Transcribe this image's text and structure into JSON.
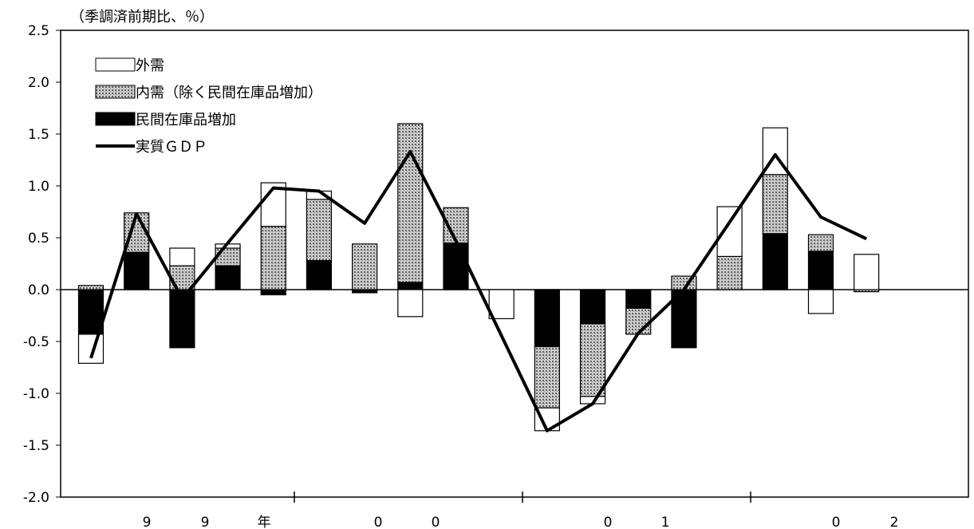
{
  "chart_data": {
    "type": "bar",
    "stacked": true,
    "unit_label": "（季調済前期比、％）",
    "title": "",
    "xlabel": "",
    "ylabel": "",
    "ylim": [
      -2.0,
      2.5
    ],
    "y_ticks": [
      "2.5",
      "2.0",
      "1.5",
      "1.0",
      "0.5",
      "0.0",
      "-0.5",
      "-1.0",
      "-1.5",
      "-2.0"
    ],
    "x_tick_labels": [
      "9",
      "9",
      "年",
      "0",
      "0",
      "0",
      "1",
      "0",
      "2"
    ],
    "grid": false,
    "legend_position": "top-left",
    "series": [
      {
        "name": "外需",
        "pattern": "white",
        "values": [
          -0.28,
          0.0,
          0.17,
          0.04,
          0.42,
          0.08,
          0.0,
          -0.26,
          0.0,
          -0.28,
          -0.22,
          -0.07,
          0.0,
          0.0,
          0.48,
          0.45,
          -0.23,
          0.34
        ]
      },
      {
        "name": "内需（除く民間在庫品増加）",
        "pattern": "dotted",
        "values": [
          0.04,
          0.38,
          0.23,
          0.17,
          0.61,
          0.59,
          0.44,
          1.53,
          0.34,
          0.0,
          -0.59,
          -0.7,
          -0.25,
          0.13,
          0.32,
          0.57,
          0.16,
          -0.02
        ]
      },
      {
        "name": "民間在庫品増加",
        "pattern": "black",
        "values": [
          -0.43,
          0.36,
          -0.56,
          0.23,
          -0.05,
          0.28,
          -0.03,
          0.07,
          0.45,
          0.0,
          -0.55,
          -0.33,
          -0.18,
          -0.56,
          0.0,
          0.54,
          0.37,
          0.0
        ]
      },
      {
        "name": "実質ＧＤＰ",
        "type": "line",
        "values": [
          -0.66,
          0.73,
          -0.09,
          0.45,
          0.98,
          0.95,
          0.64,
          1.33,
          0.47,
          null,
          -1.36,
          -1.1,
          -0.42,
          0.0,
          null,
          1.3,
          0.7,
          0.49
        ]
      }
    ]
  }
}
